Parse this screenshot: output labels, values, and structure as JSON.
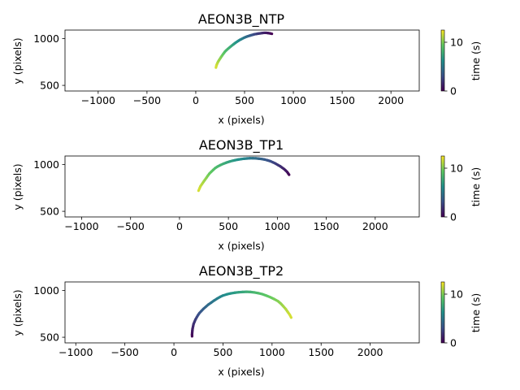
{
  "chart_data": [
    {
      "type": "scatter",
      "title": "AEON3B_NTP",
      "xlabel": "x (pixels)",
      "ylabel": "y (pixels)",
      "xlim": [
        -1340,
        2290
      ],
      "ylim": [
        1090,
        440
      ],
      "xticks": [
        -1000,
        -500,
        0,
        500,
        1000,
        1500,
        2000
      ],
      "xtick_labels": [
        "−1000",
        "−500",
        "0",
        "500",
        "1000",
        "1500",
        "2000"
      ],
      "yticks": [
        500,
        1000
      ],
      "ytick_labels": [
        "500",
        "1000"
      ],
      "colorbar": {
        "label": "time (s)",
        "min": 0,
        "max": 12.5,
        "ticks": [
          0,
          10
        ],
        "tick_labels": [
          "0",
          "10"
        ],
        "colormap": "viridis"
      },
      "x": [
        780,
        760,
        740,
        720,
        700,
        680,
        660,
        640,
        620,
        600,
        585,
        570,
        555,
        540,
        525,
        510,
        495,
        480,
        465,
        450,
        435,
        420,
        405,
        390,
        375,
        360,
        345,
        330,
        315,
        300,
        290,
        280,
        270,
        260,
        250,
        240,
        230,
        222,
        215,
        210,
        207
      ],
      "y": [
        1050,
        1055,
        1058,
        1060,
        1060,
        1058,
        1055,
        1052,
        1048,
        1045,
        1040,
        1036,
        1031,
        1026,
        1021,
        1015,
        1008,
        1000,
        992,
        984,
        974,
        964,
        953,
        941,
        929,
        916,
        903,
        890,
        876,
        861,
        847,
        833,
        818,
        803,
        787,
        771,
        754,
        738,
        721,
        705,
        690
      ],
      "t": [
        0.0,
        0.3,
        0.6,
        0.9,
        1.2,
        1.5,
        1.8,
        2.1,
        2.4,
        2.7,
        3.0,
        3.3,
        3.6,
        3.9,
        4.2,
        4.5,
        4.8,
        5.1,
        5.4,
        5.7,
        6.0,
        6.3,
        6.6,
        6.9,
        7.2,
        7.5,
        7.8,
        8.1,
        8.4,
        8.7,
        9.0,
        9.3,
        9.6,
        9.9,
        10.2,
        10.5,
        10.8,
        11.1,
        11.4,
        11.7,
        12.0
      ]
    },
    {
      "type": "scatter",
      "title": "AEON3B_TP1",
      "xlabel": "x (pixels)",
      "ylabel": "y (pixels)",
      "xlim": [
        -1170,
        2450
      ],
      "ylim": [
        1090,
        440
      ],
      "xticks": [
        -1000,
        -500,
        0,
        500,
        1000,
        1500,
        2000
      ],
      "xtick_labels": [
        "−1000",
        "−500",
        "0",
        "500",
        "1000",
        "1500",
        "2000"
      ],
      "yticks": [
        500,
        1000
      ],
      "ytick_labels": [
        "500",
        "1000"
      ],
      "colorbar": {
        "label": "time (s)",
        "min": 0,
        "max": 12.5,
        "ticks": [
          0,
          10
        ],
        "tick_labels": [
          "0",
          "10"
        ],
        "colormap": "viridis"
      },
      "x": [
        1120,
        1110,
        1100,
        1085,
        1070,
        1050,
        1030,
        1005,
        980,
        955,
        930,
        900,
        870,
        840,
        810,
        780,
        750,
        720,
        690,
        660,
        630,
        600,
        570,
        540,
        510,
        480,
        450,
        420,
        390,
        365,
        345,
        325,
        305,
        290,
        275,
        260,
        245,
        230,
        215,
        205,
        195
      ],
      "y": [
        890,
        905,
        920,
        935,
        950,
        965,
        980,
        995,
        1010,
        1022,
        1034,
        1044,
        1052,
        1058,
        1062,
        1065,
        1066,
        1066,
        1064,
        1061,
        1057,
        1052,
        1046,
        1039,
        1030,
        1020,
        1008,
        994,
        978,
        961,
        942,
        922,
        901,
        880,
        858,
        836,
        814,
        791,
        768,
        745,
        720
      ],
      "t": [
        0.0,
        0.3,
        0.6,
        0.9,
        1.2,
        1.5,
        1.8,
        2.1,
        2.4,
        2.7,
        3.0,
        3.3,
        3.6,
        3.9,
        4.2,
        4.5,
        4.8,
        5.1,
        5.4,
        5.7,
        6.0,
        6.3,
        6.6,
        6.9,
        7.2,
        7.5,
        7.8,
        8.1,
        8.4,
        8.7,
        9.0,
        9.3,
        9.6,
        9.9,
        10.2,
        10.5,
        10.8,
        11.1,
        11.4,
        11.7,
        12.0
      ]
    },
    {
      "type": "scatter",
      "title": "AEON3B_TP2",
      "xlabel": "x (pixels)",
      "ylabel": "y (pixels)",
      "xlim": [
        -1110,
        2500
      ],
      "ylim": [
        1090,
        440
      ],
      "xticks": [
        -1000,
        -500,
        0,
        500,
        1000,
        1500,
        2000
      ],
      "xtick_labels": [
        "−1000",
        "−500",
        "0",
        "500",
        "1000",
        "1500",
        "2000"
      ],
      "yticks": [
        500,
        1000
      ],
      "ytick_labels": [
        "500",
        "1000"
      ],
      "colorbar": {
        "label": "time (s)",
        "min": 0,
        "max": 12.5,
        "ticks": [
          0,
          10
        ],
        "tick_labels": [
          "0",
          "10"
        ],
        "colormap": "viridis"
      },
      "x": [
        185,
        185,
        186,
        188,
        190,
        195,
        200,
        210,
        220,
        232,
        245,
        260,
        280,
        300,
        325,
        350,
        380,
        410,
        440,
        470,
        500,
        540,
        580,
        620,
        660,
        700,
        740,
        780,
        820,
        860,
        900,
        940,
        980,
        1020,
        1060,
        1090,
        1115,
        1140,
        1160,
        1180,
        1195
      ],
      "y": [
        510,
        530,
        550,
        570,
        590,
        615,
        640,
        665,
        690,
        712,
        735,
        758,
        780,
        802,
        825,
        848,
        870,
        892,
        912,
        930,
        945,
        958,
        968,
        975,
        980,
        983,
        985,
        983,
        978,
        970,
        960,
        945,
        928,
        908,
        885,
        858,
        830,
        800,
        770,
        740,
        710
      ],
      "t": [
        0.0,
        0.3,
        0.6,
        0.9,
        1.2,
        1.5,
        1.8,
        2.1,
        2.4,
        2.7,
        3.0,
        3.3,
        3.6,
        3.9,
        4.2,
        4.5,
        4.8,
        5.1,
        5.4,
        5.7,
        6.0,
        6.3,
        6.6,
        6.9,
        7.2,
        7.5,
        7.8,
        8.1,
        8.4,
        8.7,
        9.0,
        9.3,
        9.6,
        9.9,
        10.2,
        10.5,
        10.8,
        11.1,
        11.4,
        11.7,
        12.0
      ]
    }
  ]
}
